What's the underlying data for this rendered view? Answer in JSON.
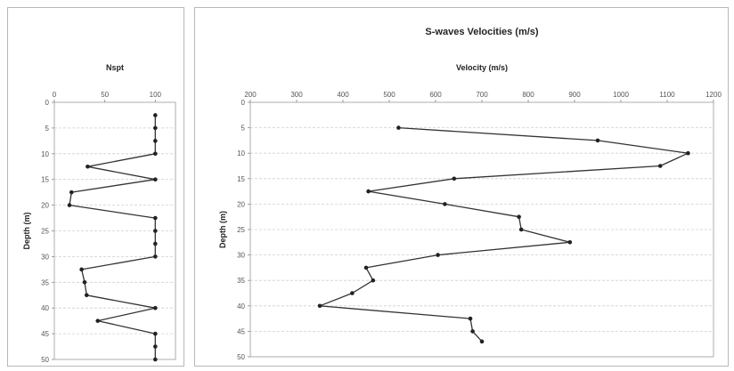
{
  "colors": {
    "line": "#333333",
    "marker": "#222222",
    "grid": "#cfcfcf",
    "frame": "#b8b8b8"
  },
  "chart_data": [
    {
      "type": "line",
      "title": "",
      "subtitle": "Nspt",
      "xlabel": "",
      "ylabel": "Depth (m)",
      "xlim": [
        0,
        120
      ],
      "ylim": [
        0,
        50
      ],
      "y_inverted": true,
      "grid": "horizontal",
      "x_ticks": [
        "0",
        "50",
        "100"
      ],
      "y_ticks": [
        "0",
        "5",
        "10",
        "15",
        "20",
        "25",
        "30",
        "35",
        "40",
        "45",
        "50"
      ],
      "series": [
        {
          "x": [
            100,
            100,
            100,
            100,
            33,
            100,
            17,
            15,
            100,
            100,
            100,
            100,
            27,
            30,
            32,
            100,
            43,
            100,
            100,
            100
          ],
          "y": [
            2.5,
            5,
            7.5,
            10,
            12.5,
            15,
            17.5,
            20,
            22.5,
            25,
            27.5,
            30,
            32.5,
            35,
            37.5,
            40,
            42.5,
            45,
            47.5,
            50
          ]
        }
      ]
    },
    {
      "type": "line",
      "title": "S-waves Velocities (m/s)",
      "subtitle": "Velocity (m/s)",
      "xlabel": "",
      "ylabel": "Depth (m)",
      "xlim": [
        200,
        1200
      ],
      "ylim": [
        0,
        50
      ],
      "y_inverted": true,
      "grid": "horizontal",
      "x_ticks": [
        "200",
        "300",
        "400",
        "500",
        "600",
        "700",
        "800",
        "900",
        "1000",
        "1100",
        "1200"
      ],
      "y_ticks": [
        "0",
        "5",
        "10",
        "15",
        "20",
        "25",
        "30",
        "35",
        "40",
        "45",
        "50"
      ],
      "series": [
        {
          "x": [
            520,
            950,
            1145,
            1085,
            640,
            455,
            620,
            780,
            785,
            890,
            605,
            450,
            465,
            420,
            350,
            675,
            680,
            700
          ],
          "y": [
            5,
            7.5,
            10,
            12.5,
            15,
            17.5,
            20,
            22.5,
            25,
            27.5,
            30,
            32.5,
            35,
            37.5,
            40,
            42.5,
            45,
            47
          ]
        }
      ]
    }
  ]
}
